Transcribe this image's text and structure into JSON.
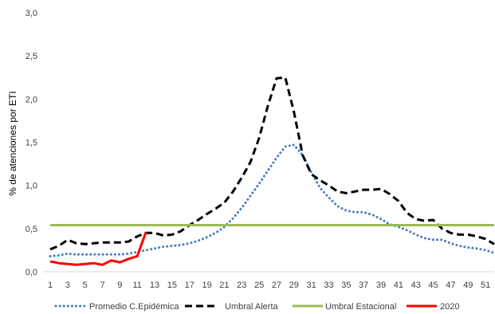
{
  "chart_data": {
    "type": "line",
    "title": "",
    "xlabel": "",
    "ylabel": "% de atenciones por  ETI",
    "xlim": [
      1,
      52
    ],
    "ylim": [
      0,
      3
    ],
    "x_tick_labels": [
      "1",
      "3",
      "5",
      "7",
      "9",
      "11",
      "13",
      "15",
      "17",
      "19",
      "21",
      "23",
      "25",
      "27",
      "29",
      "31",
      "33",
      "35",
      "37",
      "39",
      "41",
      "43",
      "45",
      "47",
      "49",
      "51"
    ],
    "y_tick_labels": [
      "0,0",
      "0,5",
      "1,0",
      "1,5",
      "2,0",
      "2,5",
      "3,0"
    ],
    "y_ticks": [
      0,
      0.5,
      1.0,
      1.5,
      2.0,
      2.5,
      3.0
    ],
    "grid": false,
    "legend_position": "bottom",
    "series": [
      {
        "name": "Promedio  C.Epidémica",
        "style": "dotted",
        "color": "#4a7ebb",
        "x": [
          1,
          2,
          3,
          4,
          5,
          6,
          7,
          8,
          9,
          10,
          11,
          12,
          13,
          14,
          15,
          16,
          17,
          18,
          19,
          20,
          21,
          22,
          23,
          24,
          25,
          26,
          27,
          28,
          29,
          30,
          31,
          32,
          33,
          34,
          35,
          36,
          37,
          38,
          39,
          40,
          41,
          42,
          43,
          44,
          45,
          46,
          47,
          48,
          49,
          50,
          51,
          52
        ],
        "values": [
          0.18,
          0.19,
          0.21,
          0.2,
          0.2,
          0.2,
          0.2,
          0.2,
          0.2,
          0.21,
          0.23,
          0.25,
          0.27,
          0.29,
          0.3,
          0.31,
          0.33,
          0.36,
          0.4,
          0.45,
          0.52,
          0.62,
          0.74,
          0.88,
          1.02,
          1.17,
          1.32,
          1.45,
          1.47,
          1.35,
          1.15,
          0.97,
          0.86,
          0.76,
          0.71,
          0.69,
          0.69,
          0.66,
          0.61,
          0.55,
          0.52,
          0.48,
          0.43,
          0.39,
          0.37,
          0.37,
          0.33,
          0.3,
          0.28,
          0.27,
          0.25,
          0.22
        ]
      },
      {
        "name": "Umbral Alerta",
        "style": "dashed",
        "color": "#000000",
        "x": [
          1,
          2,
          3,
          4,
          5,
          6,
          7,
          8,
          9,
          10,
          11,
          12,
          13,
          14,
          15,
          16,
          17,
          18,
          19,
          20,
          21,
          22,
          23,
          24,
          25,
          26,
          27,
          28,
          29,
          30,
          31,
          32,
          33,
          34,
          35,
          36,
          37,
          38,
          39,
          40,
          41,
          42,
          43,
          44,
          45,
          46,
          47,
          48,
          49,
          50,
          51,
          52
        ],
        "values": [
          0.26,
          0.3,
          0.37,
          0.33,
          0.32,
          0.33,
          0.34,
          0.34,
          0.34,
          0.35,
          0.41,
          0.45,
          0.45,
          0.42,
          0.43,
          0.47,
          0.54,
          0.6,
          0.67,
          0.73,
          0.8,
          0.93,
          1.09,
          1.27,
          1.55,
          1.92,
          2.24,
          2.25,
          1.85,
          1.35,
          1.13,
          1.06,
          1.0,
          0.93,
          0.91,
          0.93,
          0.95,
          0.95,
          0.96,
          0.9,
          0.82,
          0.68,
          0.61,
          0.59,
          0.6,
          0.5,
          0.45,
          0.43,
          0.43,
          0.41,
          0.38,
          0.32
        ]
      },
      {
        "name": "Umbral Estacional",
        "style": "solid",
        "color": "#9bbb59",
        "x": [
          1,
          52
        ],
        "values": [
          0.54,
          0.54
        ]
      },
      {
        "name": "2020",
        "style": "solid",
        "color": "#ff0000",
        "x": [
          1,
          2,
          3,
          4,
          5,
          6,
          7,
          8,
          9,
          10,
          11,
          12
        ],
        "values": [
          0.12,
          0.1,
          0.09,
          0.08,
          0.09,
          0.1,
          0.08,
          0.13,
          0.11,
          0.15,
          0.18,
          0.46
        ]
      }
    ]
  }
}
